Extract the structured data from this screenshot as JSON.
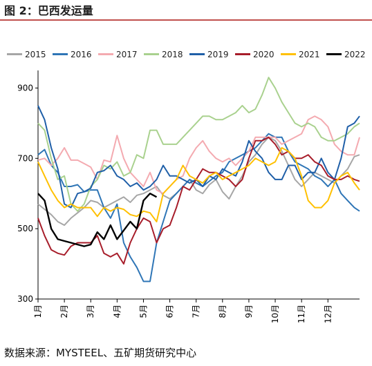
{
  "header": {
    "title": "图 2：巴西发运量"
  },
  "footer": {
    "source": "数据来源：MYSTEEL、五矿期货研究中心"
  },
  "chart_data": {
    "type": "line",
    "title": "",
    "xlabel": "",
    "ylabel": "",
    "ylim": [
      300,
      950
    ],
    "yticks": [
      300,
      500,
      700,
      900
    ],
    "xlim": [
      1,
      13.2
    ],
    "month_ticks": [
      "1月",
      "2月",
      "3月",
      "4月",
      "5月",
      "6月",
      "7月",
      "8月",
      "9月",
      "10月",
      "11月",
      "12月"
    ],
    "grid": false,
    "legend_position": "top",
    "series": [
      {
        "name": "2015",
        "color": "#a6a6a6",
        "x": [
          1.0,
          1.25,
          1.5,
          1.75,
          2.0,
          2.25,
          2.5,
          2.75,
          3.0,
          3.25,
          3.5,
          3.75,
          4.0,
          4.25,
          4.5,
          4.75,
          5.0,
          5.25,
          5.5,
          5.75,
          6.0,
          6.25,
          6.5,
          6.75,
          7.0,
          7.25,
          7.5,
          7.75,
          8.0,
          8.25,
          8.5,
          8.75,
          9.0,
          9.25,
          9.5,
          9.75,
          10.0,
          10.25,
          10.5,
          10.75,
          11.0,
          11.25,
          11.5,
          11.75,
          12.0,
          12.25,
          12.5,
          12.75,
          13.0,
          13.2
        ],
        "y": [
          570,
          555,
          540,
          520,
          510,
          530,
          545,
          560,
          580,
          575,
          560,
          570,
          580,
          590,
          575,
          595,
          600,
          610,
          620,
          595,
          585,
          600,
          620,
          640,
          610,
          600,
          625,
          640,
          605,
          585,
          620,
          650,
          690,
          710,
          740,
          760,
          750,
          720,
          680,
          640,
          620,
          640,
          660,
          650,
          640,
          630,
          650,
          670,
          705,
          710
        ]
      },
      {
        "name": "2016",
        "color": "#2e75b6",
        "x": [
          1.0,
          1.25,
          1.5,
          1.75,
          2.0,
          2.25,
          2.5,
          2.75,
          3.0,
          3.25,
          3.5,
          3.75,
          4.0,
          4.25,
          4.5,
          4.75,
          5.0,
          5.25,
          5.5,
          5.75,
          6.0,
          6.25,
          6.5,
          6.75,
          7.0,
          7.25,
          7.5,
          7.75,
          8.0,
          8.25,
          8.5,
          8.75,
          9.0,
          9.25,
          9.5,
          9.75,
          10.0,
          10.25,
          10.5,
          10.75,
          11.0,
          11.25,
          11.5,
          11.75,
          12.0,
          12.25,
          12.5,
          12.75,
          13.0,
          13.2
        ],
        "y": [
          710,
          725,
          680,
          660,
          620,
          620,
          625,
          605,
          610,
          610,
          560,
          530,
          570,
          460,
          420,
          390,
          350,
          350,
          460,
          520,
          580,
          600,
          620,
          640,
          630,
          620,
          635,
          650,
          660,
          690,
          700,
          710,
          720,
          730,
          750,
          770,
          760,
          760,
          720,
          690,
          680,
          670,
          650,
          640,
          620,
          640,
          600,
          580,
          560,
          550
        ]
      },
      {
        "name": "2017",
        "color": "#f4aab0",
        "x": [
          1.0,
          1.25,
          1.5,
          1.75,
          2.0,
          2.25,
          2.5,
          2.75,
          3.0,
          3.25,
          3.5,
          3.75,
          4.0,
          4.25,
          4.5,
          4.75,
          5.0,
          5.25,
          5.5,
          5.75,
          6.0,
          6.25,
          6.5,
          6.75,
          7.0,
          7.25,
          7.5,
          7.75,
          8.0,
          8.25,
          8.5,
          8.75,
          9.0,
          9.25,
          9.5,
          9.75,
          10.0,
          10.25,
          10.5,
          10.75,
          11.0,
          11.25,
          11.5,
          11.75,
          12.0,
          12.25,
          12.5,
          12.75,
          13.0,
          13.2
        ],
        "y": [
          695,
          700,
          680,
          700,
          730,
          695,
          695,
          685,
          675,
          640,
          695,
          690,
          765,
          700,
          660,
          640,
          620,
          660,
          610,
          600,
          620,
          640,
          650,
          700,
          730,
          750,
          720,
          700,
          690,
          700,
          680,
          700,
          720,
          760,
          760,
          760,
          760,
          740,
          750,
          760,
          770,
          810,
          820,
          810,
          790,
          740,
          720,
          710,
          710,
          760
        ]
      },
      {
        "name": "2018",
        "color": "#a9d18e",
        "x": [
          1.0,
          1.25,
          1.5,
          1.75,
          2.0,
          2.25,
          2.5,
          2.75,
          3.0,
          3.25,
          3.5,
          3.75,
          4.0,
          4.25,
          4.5,
          4.75,
          5.0,
          5.25,
          5.5,
          5.75,
          6.0,
          6.25,
          6.5,
          6.75,
          7.0,
          7.25,
          7.5,
          7.75,
          8.0,
          8.25,
          8.5,
          8.75,
          9.0,
          9.25,
          9.5,
          9.75,
          10.0,
          10.25,
          10.5,
          10.75,
          11.0,
          11.25,
          11.5,
          11.75,
          12.0,
          12.25,
          12.5,
          12.75,
          13.0,
          13.2
        ],
        "y": [
          800,
          780,
          700,
          640,
          650,
          570,
          550,
          570,
          620,
          640,
          680,
          670,
          690,
          650,
          660,
          710,
          700,
          780,
          780,
          740,
          740,
          740,
          760,
          780,
          800,
          820,
          820,
          810,
          810,
          820,
          830,
          850,
          830,
          840,
          880,
          930,
          900,
          860,
          830,
          800,
          790,
          800,
          790,
          760,
          750,
          750,
          760,
          770,
          790,
          800
        ]
      },
      {
        "name": "2019",
        "color": "#1f5fa8",
        "x": [
          1.0,
          1.25,
          1.5,
          1.75,
          2.0,
          2.25,
          2.5,
          2.75,
          3.0,
          3.25,
          3.5,
          3.75,
          4.0,
          4.25,
          4.5,
          4.75,
          5.0,
          5.25,
          5.5,
          5.75,
          6.0,
          6.25,
          6.5,
          6.75,
          7.0,
          7.25,
          7.5,
          7.75,
          8.0,
          8.25,
          8.5,
          8.75,
          9.0,
          9.25,
          9.5,
          9.75,
          10.0,
          10.25,
          10.5,
          10.75,
          11.0,
          11.25,
          11.5,
          11.75,
          12.0,
          12.25,
          12.5,
          12.75,
          13.0,
          13.2
        ],
        "y": [
          850,
          810,
          730,
          670,
          570,
          560,
          600,
          605,
          615,
          660,
          665,
          680,
          650,
          640,
          620,
          630,
          610,
          620,
          640,
          680,
          650,
          650,
          640,
          630,
          640,
          620,
          650,
          640,
          670,
          660,
          650,
          690,
          750,
          720,
          700,
          660,
          640,
          640,
          680,
          680,
          640,
          660,
          660,
          700,
          660,
          640,
          700,
          790,
          800,
          820
        ]
      },
      {
        "name": "2020",
        "color": "#a71d2a",
        "x": [
          1.0,
          1.25,
          1.5,
          1.75,
          2.0,
          2.25,
          2.5,
          2.75,
          3.0,
          3.25,
          3.5,
          3.75,
          4.0,
          4.25,
          4.5,
          4.75,
          5.0,
          5.25,
          5.5,
          5.75,
          6.0,
          6.25,
          6.5,
          6.75,
          7.0,
          7.25,
          7.5,
          7.75,
          8.0,
          8.25,
          8.5,
          8.75,
          9.0,
          9.25,
          9.5,
          9.75,
          10.0,
          10.25,
          10.5,
          10.75,
          11.0,
          11.25,
          11.5,
          11.75,
          12.0,
          12.25,
          12.5,
          12.75,
          13.0,
          13.2
        ],
        "y": [
          530,
          480,
          440,
          430,
          425,
          450,
          460,
          460,
          460,
          480,
          430,
          420,
          430,
          400,
          460,
          500,
          530,
          520,
          460,
          500,
          510,
          560,
          620,
          610,
          640,
          670,
          660,
          660,
          650,
          640,
          620,
          640,
          700,
          750,
          750,
          760,
          740,
          710,
          720,
          700,
          700,
          710,
          690,
          680,
          650,
          640,
          640,
          650,
          640,
          635
        ]
      },
      {
        "name": "2021",
        "color": "#ffc000",
        "x": [
          1.0,
          1.25,
          1.5,
          1.75,
          2.0,
          2.25,
          2.5,
          2.75,
          3.0,
          3.25,
          3.5,
          3.75,
          4.0,
          4.25,
          4.5,
          4.75,
          5.0,
          5.25,
          5.5,
          5.75,
          6.0,
          6.25,
          6.5,
          6.75,
          7.0,
          7.25,
          7.5,
          7.75,
          8.0,
          8.25,
          8.5,
          8.75,
          9.0,
          9.25,
          9.5,
          9.75,
          10.0,
          10.25,
          10.5,
          10.75,
          11.0,
          11.25,
          11.5,
          11.75,
          12.0,
          12.25,
          12.5,
          12.75,
          13.0,
          13.2
        ],
        "y": [
          690,
          650,
          610,
          580,
          560,
          570,
          560,
          560,
          560,
          535,
          560,
          550,
          560,
          555,
          540,
          535,
          550,
          545,
          520,
          600,
          620,
          640,
          680,
          650,
          640,
          630,
          650,
          660,
          640,
          650,
          660,
          670,
          680,
          700,
          690,
          680,
          690,
          730,
          720,
          700,
          650,
          580,
          560,
          560,
          580,
          630,
          650,
          660,
          630,
          610
        ]
      },
      {
        "name": "2022",
        "color": "#000000",
        "x": [
          1.0,
          1.25,
          1.5,
          1.75,
          2.0,
          2.25,
          2.5,
          2.75,
          3.0,
          3.25,
          3.5,
          3.75,
          4.0,
          4.25,
          4.5,
          4.75,
          5.0,
          5.25,
          5.5
        ],
        "y": [
          600,
          580,
          500,
          470,
          465,
          460,
          455,
          450,
          455,
          490,
          470,
          510,
          470,
          495,
          520,
          500,
          580,
          600,
          590
        ]
      }
    ]
  }
}
